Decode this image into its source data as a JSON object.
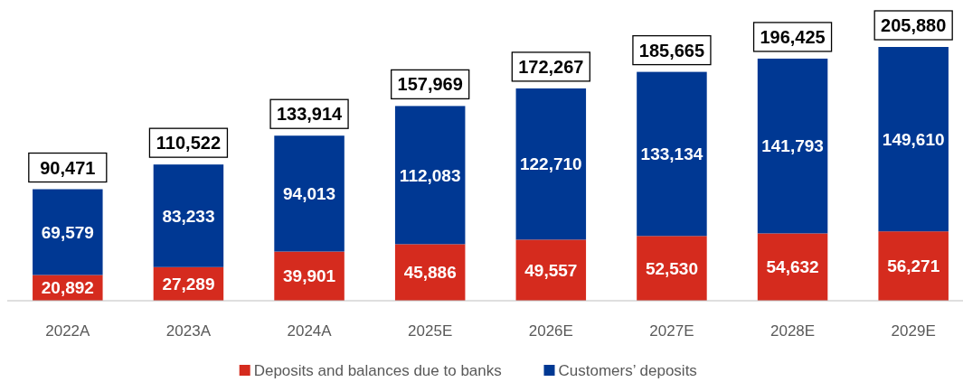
{
  "chart_data": {
    "type": "bar",
    "stacked": true,
    "categories": [
      "2022A",
      "2023A",
      "2024A",
      "2025E",
      "2026E",
      "2027E",
      "2028E",
      "2029E"
    ],
    "series": [
      {
        "name": "Deposits and balances due to banks",
        "color": "#d52b1e",
        "values": [
          20892,
          27289,
          39901,
          45886,
          49557,
          52530,
          54632,
          56271
        ],
        "value_labels": [
          "20,892",
          "27,289",
          "39,901",
          "45,886",
          "49,557",
          "52,530",
          "54,632",
          "56,271"
        ]
      },
      {
        "name": "Customers’ deposits",
        "color": "#003893",
        "values": [
          69579,
          83233,
          94013,
          112083,
          122710,
          133134,
          141793,
          149610
        ],
        "value_labels": [
          "69,579",
          "83,233",
          "94,013",
          "112,083",
          "122,710",
          "133,134",
          "141,793",
          "149,610"
        ]
      }
    ],
    "totals": [
      "90,471",
      "110,522",
      "133,914",
      "157,969",
      "172,267",
      "185,665",
      "196,425",
      "205,880"
    ],
    "legend": "bottom"
  }
}
